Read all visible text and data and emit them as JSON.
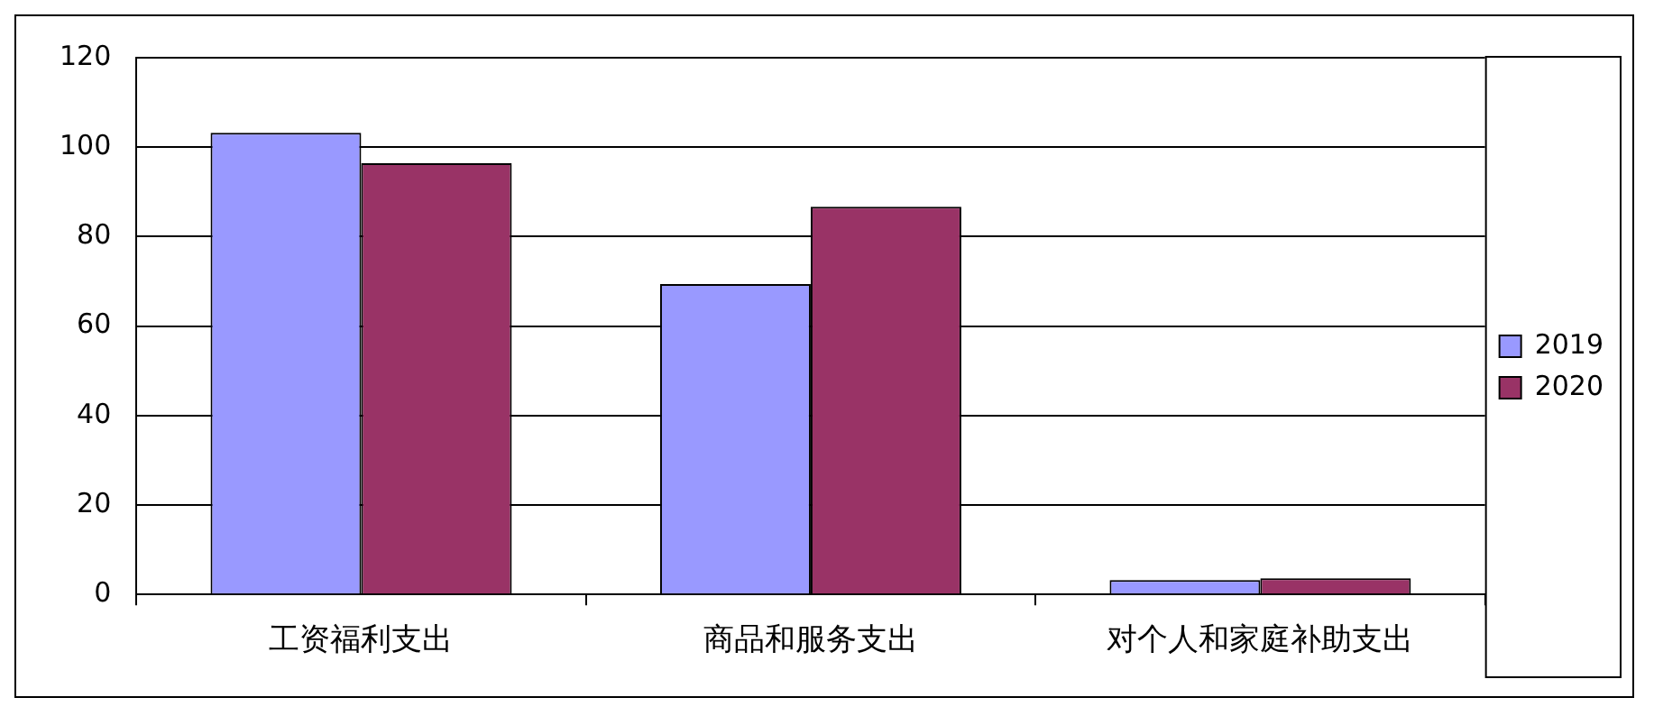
{
  "chart_data": {
    "type": "bar",
    "categories": [
      "工资福利支出",
      "商品和服务支出",
      "对个人和家庭补助支出"
    ],
    "series": [
      {
        "name": "2019",
        "color": "#9999ff",
        "values": [
          103.2,
          69.4,
          3.2
        ]
      },
      {
        "name": "2020",
        "color": "#993366",
        "values": [
          96.4,
          86.7,
          3.6
        ]
      }
    ],
    "ylim": [
      0,
      120
    ],
    "yticks": [
      0,
      20,
      40,
      60,
      80,
      100,
      120
    ],
    "grid": "y",
    "legend": "right"
  }
}
